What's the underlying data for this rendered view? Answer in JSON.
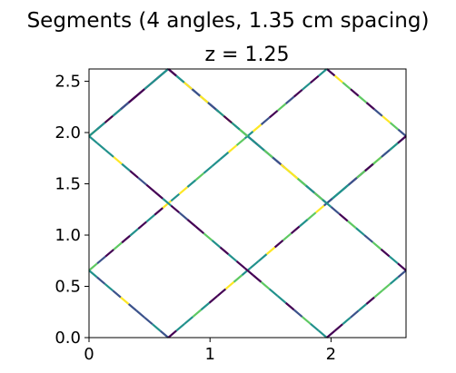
{
  "chart_data": {
    "type": "line",
    "suptitle": "Segments (4 angles, 1.35 cm spacing)",
    "title": "z = 1.25",
    "xlabel": "",
    "ylabel": "",
    "xlim": [
      0,
      2.62
    ],
    "ylim": [
      0,
      2.62
    ],
    "xticks": [
      0,
      1,
      2
    ],
    "xtick_labels": [
      "0",
      "1",
      "2"
    ],
    "yticks": [
      0.0,
      0.5,
      1.0,
      1.5,
      2.0,
      2.5
    ],
    "ytick_labels": [
      "0.0",
      "0.5",
      "1.0",
      "1.5",
      "2.0",
      "2.5"
    ],
    "grid": false,
    "colormap": [
      "#440154",
      "#3b528b",
      "#21918c",
      "#5ec962",
      "#fde725"
    ],
    "segments": [
      {
        "x": [
          0,
          0.655
        ],
        "y": [
          1.965,
          2.62
        ]
      },
      {
        "x": [
          0.655,
          1.965
        ],
        "y": [
          2.62,
          1.31
        ]
      },
      {
        "x": [
          1.965,
          2.62
        ],
        "y": [
          1.31,
          1.965
        ]
      },
      {
        "x": [
          2.62,
          1.965
        ],
        "y": [
          1.965,
          2.62
        ]
      },
      {
        "x": [
          1.965,
          0
        ],
        "y": [
          2.62,
          0.655
        ]
      },
      {
        "x": [
          0,
          0.655
        ],
        "y": [
          0.655,
          0
        ]
      },
      {
        "x": [
          0.655,
          2.62
        ],
        "y": [
          0,
          1.965
        ]
      },
      {
        "x": [
          0.655,
          0
        ],
        "y": [
          2.62,
          1.965
        ]
      },
      {
        "x": [
          0,
          1.965
        ],
        "y": [
          1.965,
          0
        ]
      },
      {
        "x": [
          1.965,
          2.62
        ],
        "y": [
          0,
          0.655
        ]
      },
      {
        "x": [
          2.62,
          1.31
        ],
        "y": [
          0.655,
          1.965
        ]
      },
      {
        "x": [
          1.31,
          0.655
        ],
        "y": [
          1.965,
          2.62
        ]
      }
    ]
  }
}
